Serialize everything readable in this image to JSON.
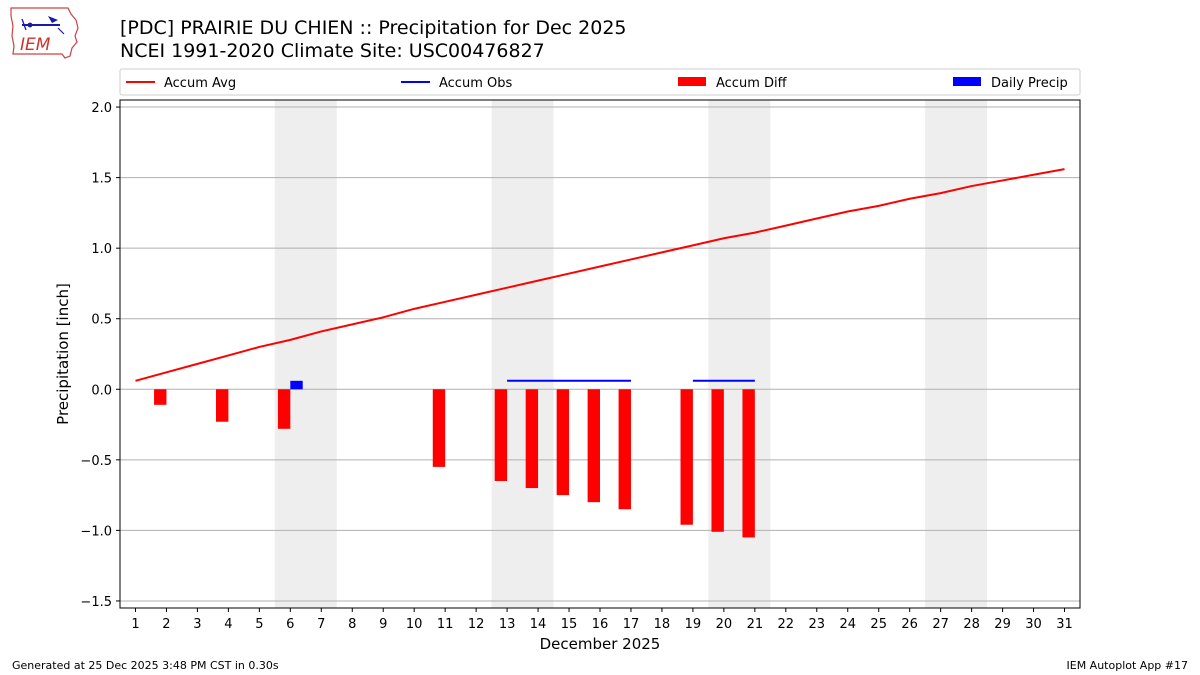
{
  "header": {
    "title_line1": "[PDC] PRAIRIE DU CHIEN :: Precipitation for Dec 2025",
    "title_line2": "NCEI 1991-2020 Climate Site: USC00476827"
  },
  "logo": {
    "text": "IEM"
  },
  "footer": {
    "left": "Generated at 25 Dec 2025 3:48 PM CST in 0.30s",
    "right": "IEM Autoplot App #17"
  },
  "colors": {
    "accum_avg": "#ff0000",
    "accum_obs": "#0000ff",
    "accum_diff": "#ff0000",
    "daily_precip": "#0000ff",
    "weekend_shade": "#eeeeee",
    "grid": "#b0b0b0"
  },
  "chart_data": {
    "type": "bar",
    "xlabel": "December 2025",
    "ylabel": "Precipitation [inch]",
    "xlim": [
      0.5,
      31.5
    ],
    "ylim": [
      -1.55,
      2.05
    ],
    "x_ticks": [
      1,
      2,
      3,
      4,
      5,
      6,
      7,
      8,
      9,
      10,
      11,
      12,
      13,
      14,
      15,
      16,
      17,
      18,
      19,
      20,
      21,
      22,
      23,
      24,
      25,
      26,
      27,
      28,
      29,
      30,
      31
    ],
    "y_ticks": [
      -1.5,
      -1.0,
      -0.5,
      0.0,
      0.5,
      1.0,
      1.5,
      2.0
    ],
    "y_tick_labels": [
      "−1.5",
      "−1.0",
      "−0.5",
      "0.0",
      "0.5",
      "1.0",
      "1.5",
      "2.0"
    ],
    "grid": "y",
    "legend": {
      "position": "top",
      "entries": [
        "Accum Avg",
        "Accum Obs",
        "Accum Diff",
        "Daily Precip"
      ]
    },
    "weekend_spans": [
      [
        5.5,
        7.5
      ],
      [
        12.5,
        14.5
      ],
      [
        19.5,
        21.5
      ],
      [
        26.5,
        28.5
      ]
    ],
    "accum_avg": {
      "days": [
        1,
        2,
        3,
        4,
        5,
        6,
        7,
        8,
        9,
        10,
        11,
        12,
        13,
        14,
        15,
        16,
        17,
        18,
        19,
        20,
        21,
        22,
        23,
        24,
        25,
        26,
        27,
        28,
        29,
        30,
        31
      ],
      "values": [
        0.06,
        0.12,
        0.18,
        0.24,
        0.3,
        0.35,
        0.41,
        0.46,
        0.51,
        0.57,
        0.62,
        0.67,
        0.72,
        0.77,
        0.82,
        0.87,
        0.92,
        0.97,
        1.02,
        1.07,
        1.11,
        1.16,
        1.21,
        1.26,
        1.3,
        1.35,
        1.39,
        1.44,
        1.48,
        1.52,
        1.56
      ]
    },
    "accum_obs": [
      {
        "x": [
          13,
          17
        ],
        "y": 0.06
      },
      {
        "x": [
          19,
          21
        ],
        "y": 0.06
      }
    ],
    "accum_diff": {
      "days": [
        2,
        4,
        6,
        11,
        13,
        14,
        15,
        16,
        17,
        19,
        20,
        21
      ],
      "values": [
        -0.11,
        -0.23,
        -0.28,
        -0.55,
        -0.65,
        -0.7,
        -0.75,
        -0.8,
        -0.85,
        -0.96,
        -1.01,
        -1.05
      ]
    },
    "daily_precip": {
      "days": [
        6
      ],
      "values": [
        0.06
      ]
    }
  }
}
